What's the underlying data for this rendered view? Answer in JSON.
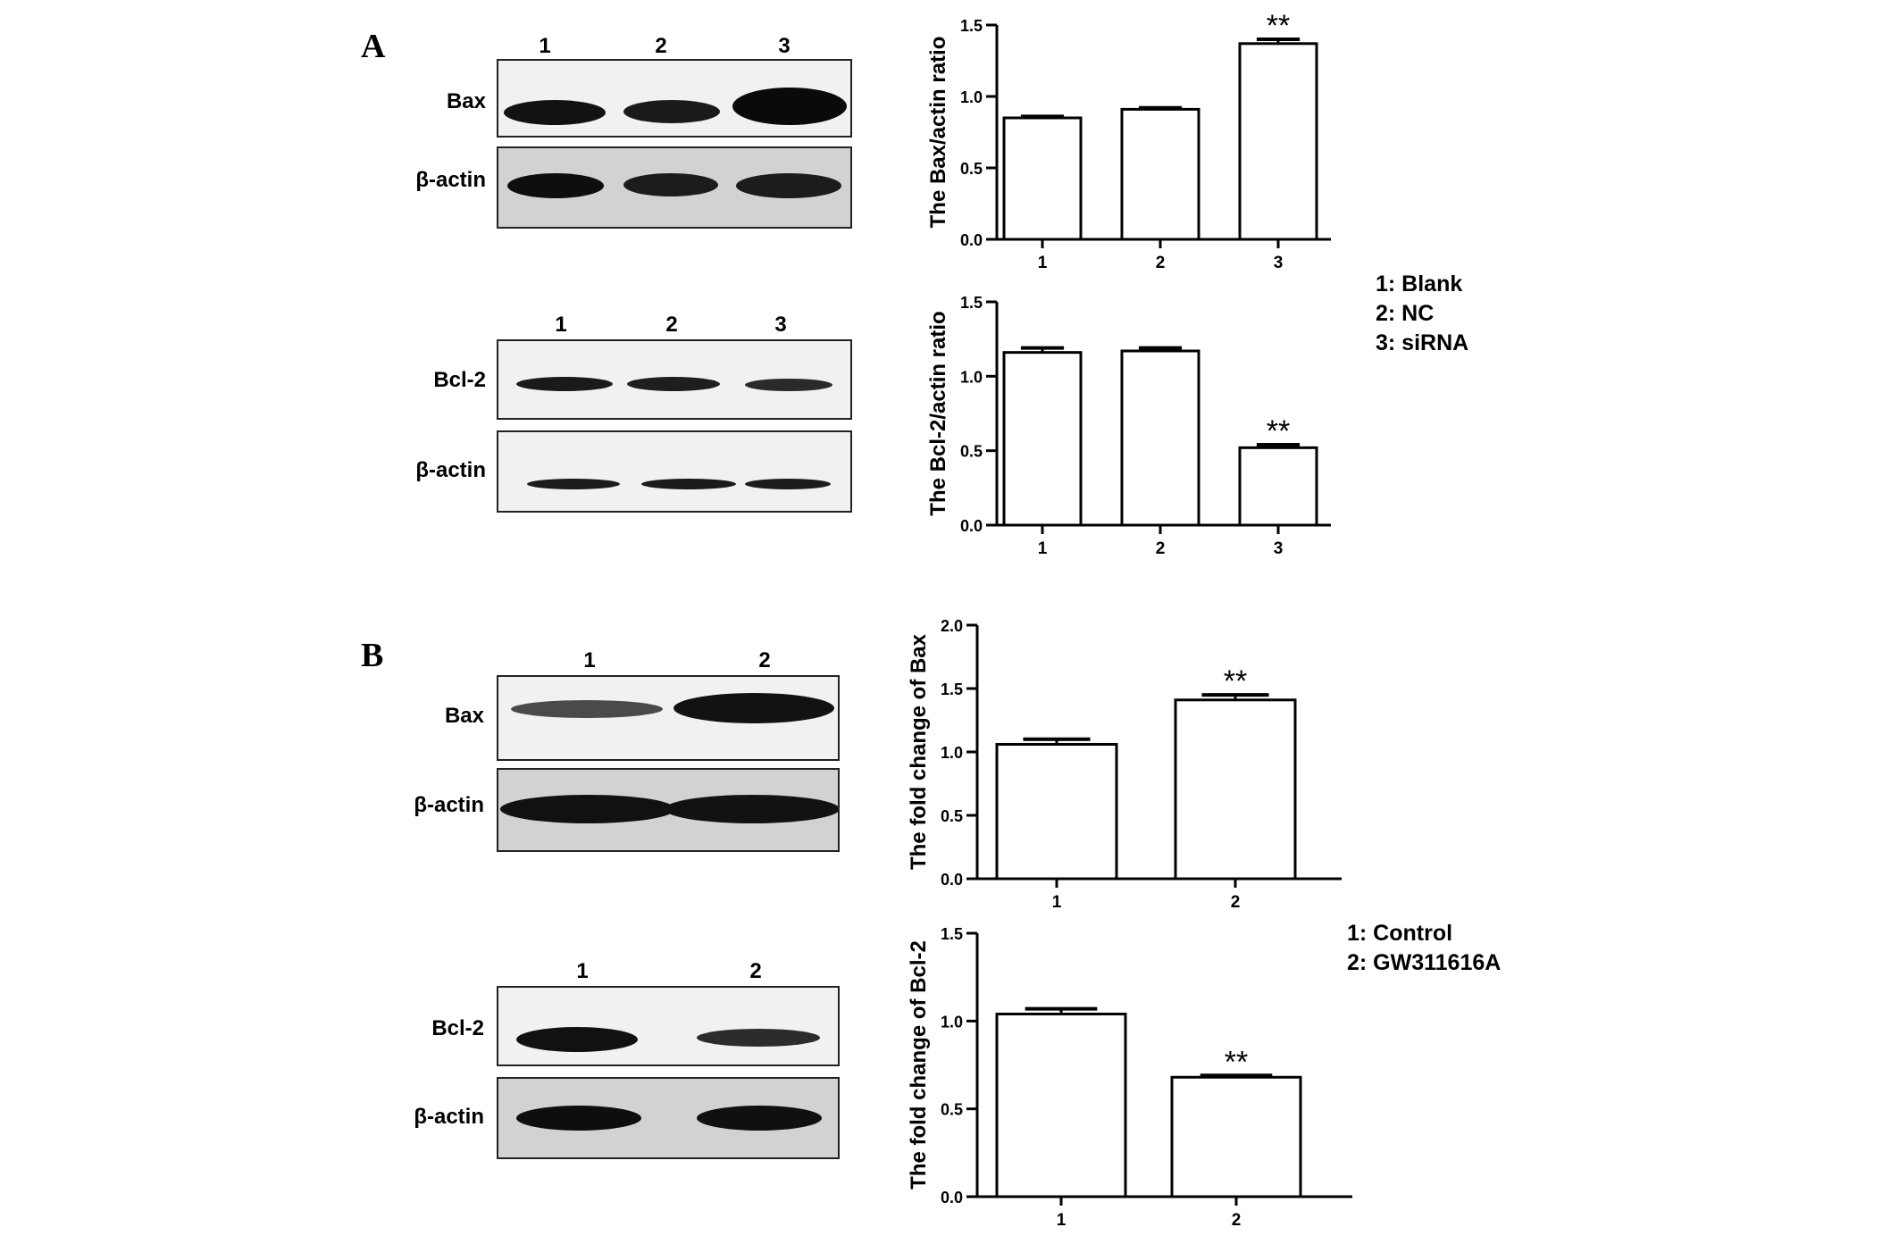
{
  "panels": [
    {
      "letter": "A"
    },
    {
      "letter": "B"
    }
  ],
  "blots": [
    {
      "id": "a-bax",
      "lanes": [
        "1",
        "2",
        "3"
      ],
      "rows": [
        {
          "label": "Bax",
          "intensity": [
            0.85,
            0.8,
            1.0
          ]
        },
        {
          "label": "β-actin",
          "intensity": [
            1.0,
            0.9,
            0.9
          ]
        }
      ]
    },
    {
      "id": "a-bcl2",
      "lanes": [
        "1",
        "2",
        "3"
      ],
      "rows": [
        {
          "label": "Bcl-2",
          "intensity": [
            0.8,
            0.8,
            0.6
          ]
        },
        {
          "label": "β-actin",
          "intensity": [
            0.8,
            0.85,
            0.8
          ]
        }
      ]
    },
    {
      "id": "b-bax",
      "lanes": [
        "1",
        "2"
      ],
      "rows": [
        {
          "label": "Bax",
          "intensity": [
            0.5,
            1.0
          ]
        },
        {
          "label": "β-actin",
          "intensity": [
            1.0,
            1.0
          ]
        }
      ]
    },
    {
      "id": "b-bcl2",
      "lanes": [
        "1",
        "2"
      ],
      "rows": [
        {
          "label": "Bcl-2",
          "intensity": [
            1.0,
            0.7
          ]
        },
        {
          "label": "β-actin",
          "intensity": [
            1.0,
            1.0
          ]
        }
      ]
    }
  ],
  "legends": [
    {
      "items": [
        "1: Blank",
        "2: NC",
        "3: siRNA"
      ]
    },
    {
      "items": [
        "1: Control",
        "2: GW311616A"
      ]
    }
  ],
  "chart_data": [
    {
      "type": "bar",
      "categories": [
        "1",
        "2",
        "3"
      ],
      "values": [
        0.85,
        0.91,
        1.37
      ],
      "errors": [
        0.01,
        0.01,
        0.03
      ],
      "annotations": [
        "",
        "",
        "**"
      ],
      "ylabel": "The Bax/actin ratio",
      "ylim": [
        0,
        1.5
      ],
      "yticks": [
        "0.0",
        "0.5",
        "1.0",
        "1.5"
      ],
      "tickvals": [
        0,
        0.5,
        1.0,
        1.5
      ]
    },
    {
      "type": "bar",
      "categories": [
        "1",
        "2",
        "3"
      ],
      "values": [
        1.16,
        1.17,
        0.52
      ],
      "errors": [
        0.03,
        0.02,
        0.02
      ],
      "annotations": [
        "",
        "",
        "**"
      ],
      "ylabel": "The Bcl-2/actin ratio",
      "ylim": [
        0,
        1.5
      ],
      "yticks": [
        "0.0",
        "0.5",
        "1.0",
        "1.5"
      ],
      "tickvals": [
        0,
        0.5,
        1.0,
        1.5
      ]
    },
    {
      "type": "bar",
      "categories": [
        "1",
        "2"
      ],
      "values": [
        1.06,
        1.41
      ],
      "errors": [
        0.04,
        0.04
      ],
      "annotations": [
        "",
        "**"
      ],
      "ylabel": "The fold change of Bax",
      "ylim": [
        0,
        2.0
      ],
      "yticks": [
        "0.0",
        "0.5",
        "1.0",
        "1.5",
        "2.0"
      ],
      "tickvals": [
        0,
        0.5,
        1.0,
        1.5,
        2.0
      ]
    },
    {
      "type": "bar",
      "categories": [
        "1",
        "2"
      ],
      "values": [
        1.04,
        0.68
      ],
      "errors": [
        0.03,
        0.01
      ],
      "annotations": [
        "",
        "**"
      ],
      "ylabel": "The fold change of Bcl-2",
      "ylim": [
        0,
        1.5
      ],
      "yticks": [
        "0.0",
        "0.5",
        "1.0",
        "1.5"
      ],
      "tickvals": [
        0,
        0.5,
        1.0,
        1.5
      ]
    }
  ]
}
